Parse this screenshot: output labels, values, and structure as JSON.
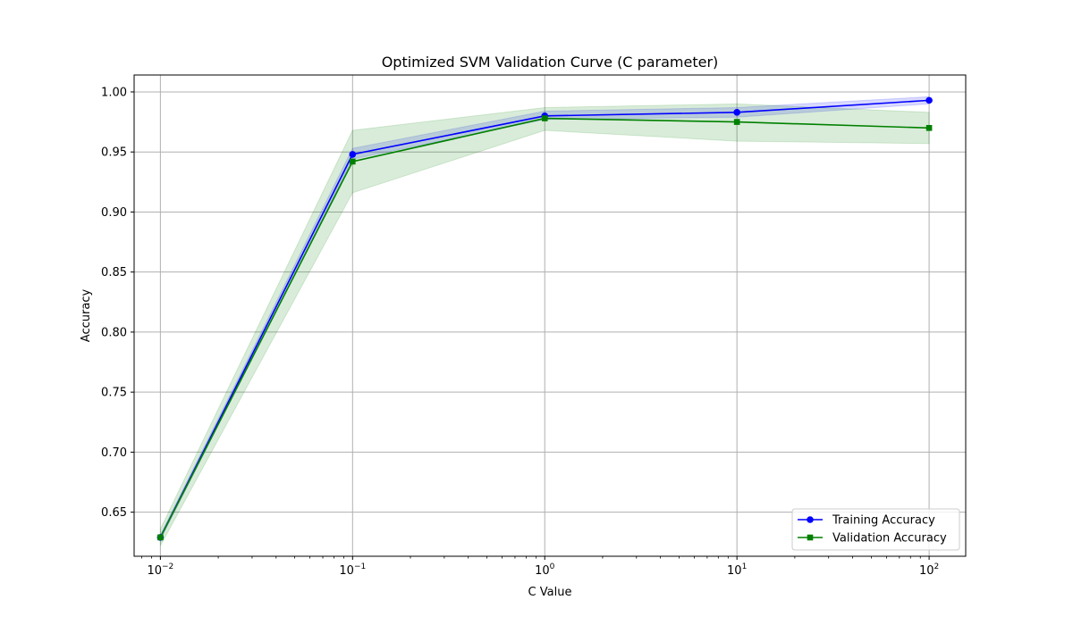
{
  "chart_data": {
    "type": "line",
    "title": "Optimized SVM Validation Curve (C parameter)",
    "xlabel": "C Value",
    "ylabel": "Accuracy",
    "x_scale": "log",
    "x": [
      0.01,
      0.1,
      1,
      10,
      100
    ],
    "x_ticks": [
      {
        "value": 0.01,
        "base": "10",
        "exp": "−2"
      },
      {
        "value": 0.1,
        "base": "10",
        "exp": "−1"
      },
      {
        "value": 1,
        "base": "10",
        "exp": "0"
      },
      {
        "value": 10,
        "base": "10",
        "exp": "1"
      },
      {
        "value": 100,
        "base": "10",
        "exp": "2"
      }
    ],
    "y_ticks": [
      {
        "value": 0.65,
        "label": "0.65"
      },
      {
        "value": 0.7,
        "label": "0.70"
      },
      {
        "value": 0.75,
        "label": "0.75"
      },
      {
        "value": 0.8,
        "label": "0.80"
      },
      {
        "value": 0.85,
        "label": "0.85"
      },
      {
        "value": 0.9,
        "label": "0.90"
      },
      {
        "value": 0.95,
        "label": "0.95"
      },
      {
        "value": 1.0,
        "label": "1.00"
      }
    ],
    "xlim": [
      0.0073,
      155
    ],
    "ylim": [
      0.6133,
      1.0141
    ],
    "grid": true,
    "legend_position": "lower-right",
    "series": [
      {
        "name": "Training Accuracy",
        "color": "#0000ff",
        "marker": "circle",
        "values": [
          0.629,
          0.948,
          0.98,
          0.983,
          0.993
        ],
        "band_lower": [
          0.627,
          0.944,
          0.977,
          0.979,
          0.99
        ],
        "band_upper": [
          0.631,
          0.953,
          0.984,
          0.987,
          0.996
        ],
        "band_color": "#0000ff"
      },
      {
        "name": "Validation Accuracy",
        "color": "#008000",
        "marker": "square",
        "values": [
          0.629,
          0.942,
          0.978,
          0.975,
          0.97
        ],
        "band_lower": [
          0.622,
          0.916,
          0.968,
          0.959,
          0.957
        ],
        "band_upper": [
          0.636,
          0.968,
          0.987,
          0.99,
          0.983
        ],
        "band_color": "#008000"
      }
    ]
  }
}
